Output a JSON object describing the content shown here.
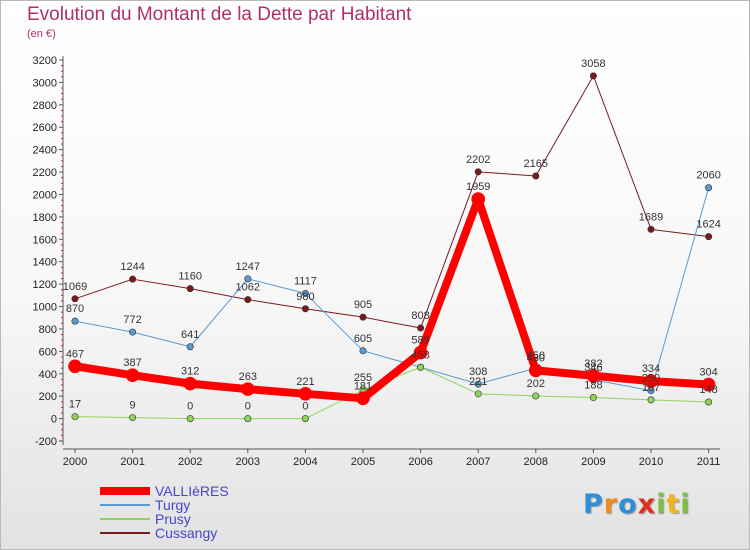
{
  "header": {
    "title": "Evolution du Montant de la Dette par Habitant",
    "subtitle": "(en €)"
  },
  "chart_data": {
    "type": "line",
    "x": [
      "2000",
      "2001",
      "2002",
      "2003",
      "2004",
      "2005",
      "2006",
      "2007",
      "2008",
      "2009",
      "2010",
      "2011"
    ],
    "ylim": [
      -200,
      3200
    ],
    "yticks": [
      -200,
      0,
      200,
      400,
      600,
      800,
      1000,
      1200,
      1400,
      1600,
      1800,
      2000,
      2200,
      2400,
      2600,
      2800,
      3000,
      3200
    ],
    "grid": false,
    "legend_position": "bottom-left",
    "series": [
      {
        "name": "Cussangy",
        "color": "#7a1a1e",
        "width": 1,
        "values": [
          1069,
          1244,
          1160,
          1062,
          980,
          905,
          808,
          2202,
          2165,
          3058,
          1689,
          1624
        ]
      },
      {
        "name": "Turgy",
        "color": "#5b9ad0",
        "width": 1,
        "values": [
          870,
          772,
          641,
          1247,
          1117,
          605,
          458,
          308,
          450,
          346,
          250,
          2060
        ]
      },
      {
        "name": "Prusy",
        "color": "#8fd45a",
        "width": 1,
        "values": [
          17,
          9,
          0,
          0,
          0,
          255,
          458,
          221,
          202,
          188,
          167,
          148
        ]
      },
      {
        "name": "VALLIèRES",
        "color": "#ff0000",
        "width": 8,
        "values": [
          467,
          387,
          312,
          263,
          221,
          181,
          589,
          1959,
          430,
          382,
          334,
          304
        ]
      }
    ],
    "point_labels": {
      "Cussangy": [
        "1069",
        "1244",
        "1160",
        "1062",
        "980",
        "905",
        "808",
        "2202",
        "2165",
        "3058",
        "1689",
        "1624"
      ],
      "Turgy": [
        "870",
        "772",
        "641",
        "1247",
        "1117",
        "605",
        "",
        "308",
        "450",
        "346",
        "250",
        "2060"
      ],
      "Prusy": [
        "17",
        "9",
        "0",
        "0",
        "0",
        "255",
        "458",
        "221",
        "202",
        "188",
        "167",
        "148"
      ],
      "VALLIèRES": [
        "467",
        "387",
        "312",
        "263",
        "221",
        "181",
        "589",
        "1959",
        "430",
        "382",
        "334",
        "304"
      ]
    }
  },
  "legend": {
    "items": [
      {
        "label": "VALLIèRES",
        "color": "#ff0000"
      },
      {
        "label": "Turgy",
        "color": "#5b9ad0"
      },
      {
        "label": "Prusy",
        "color": "#8fd45a"
      },
      {
        "label": "Cussangy",
        "color": "#7a1a1e"
      }
    ]
  },
  "logo": {
    "text": "Proxiti",
    "colors": [
      "#2e8fd8",
      "#f08a1c",
      "#2e8fd8",
      "#e0301e",
      "#7cc040",
      "#f0b41c",
      "#7cc040"
    ]
  }
}
